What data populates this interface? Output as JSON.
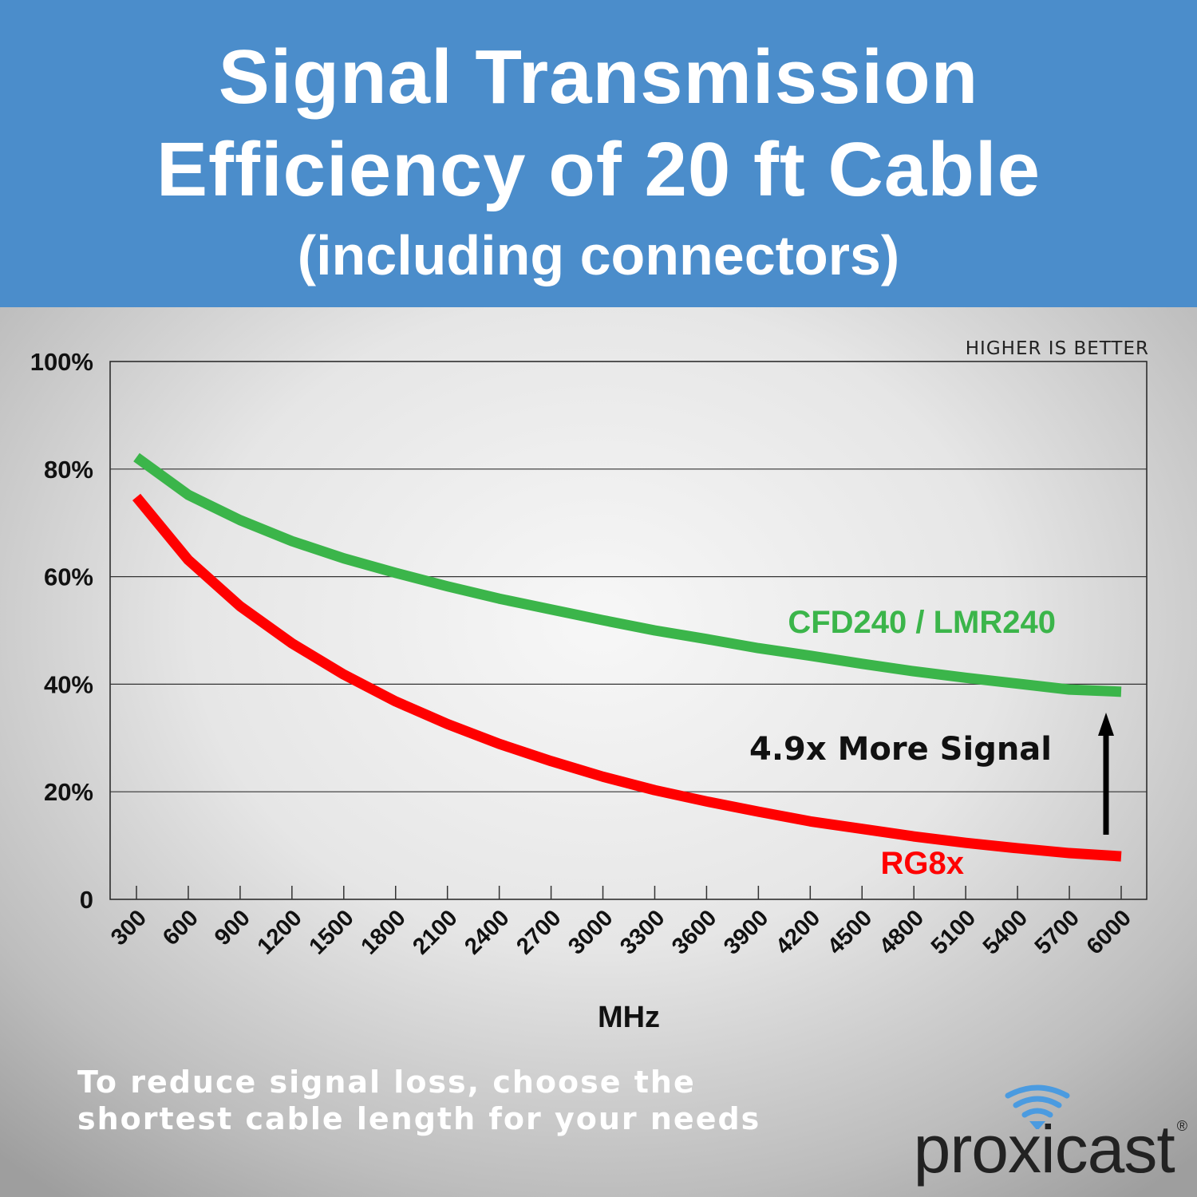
{
  "header": {
    "line1": "Signal Transmission",
    "line2": "Efficiency of 20 ft Cable",
    "line3": "(including connectors)"
  },
  "chart_data": {
    "type": "line",
    "title": "Signal Transmission Efficiency of 20 ft Cable (including connectors)",
    "xlabel": "MHz",
    "ylabel": "",
    "annotation_top": "HIGHER IS BETTER",
    "annotation_arrow": "4.9x More Signal",
    "x": [
      300,
      600,
      900,
      1200,
      1500,
      1800,
      2100,
      2400,
      2700,
      3000,
      3300,
      3600,
      3900,
      4200,
      4500,
      4800,
      5100,
      5400,
      5700,
      6000
    ],
    "x_tick_labels": [
      "300",
      "600",
      "900",
      "1200",
      "1500",
      "1800",
      "2100",
      "2400",
      "2700",
      "3000",
      "3300",
      "3600",
      "3900",
      "4200",
      "4500",
      "4800",
      "5100",
      "5400",
      "5700",
      "6000"
    ],
    "y_ticks": [
      0,
      20,
      40,
      60,
      80,
      100
    ],
    "y_tick_labels": [
      "0",
      "20%",
      "40%",
      "60%",
      "80%",
      "100%"
    ],
    "ylim": [
      0,
      100
    ],
    "grid": true,
    "series": [
      {
        "name": "CFD240 / LMR240",
        "color": "#3bb54a",
        "values": [
          82.2,
          75.2,
          70.5,
          66.6,
          63.4,
          60.7,
          58.2,
          55.9,
          53.9,
          51.9,
          50.0,
          48.4,
          46.7,
          45.3,
          43.8,
          42.4,
          41.2,
          40.1,
          39.0,
          38.6
        ]
      },
      {
        "name": "RG8x",
        "color": "#ff0000",
        "values": [
          74.8,
          63.1,
          54.5,
          47.6,
          41.8,
          36.8,
          32.6,
          28.9,
          25.7,
          22.8,
          20.3,
          18.2,
          16.3,
          14.5,
          13.1,
          11.7,
          10.5,
          9.5,
          8.6,
          8.0
        ]
      }
    ]
  },
  "footer": {
    "note_line1": "To reduce signal loss, choose the",
    "note_line2": "shortest cable length for your needs",
    "logo_text": "proxicast",
    "logo_reg": "®"
  },
  "colors": {
    "header_bg": "#4b8dcb",
    "logo_wifi": "#4b9be0"
  }
}
